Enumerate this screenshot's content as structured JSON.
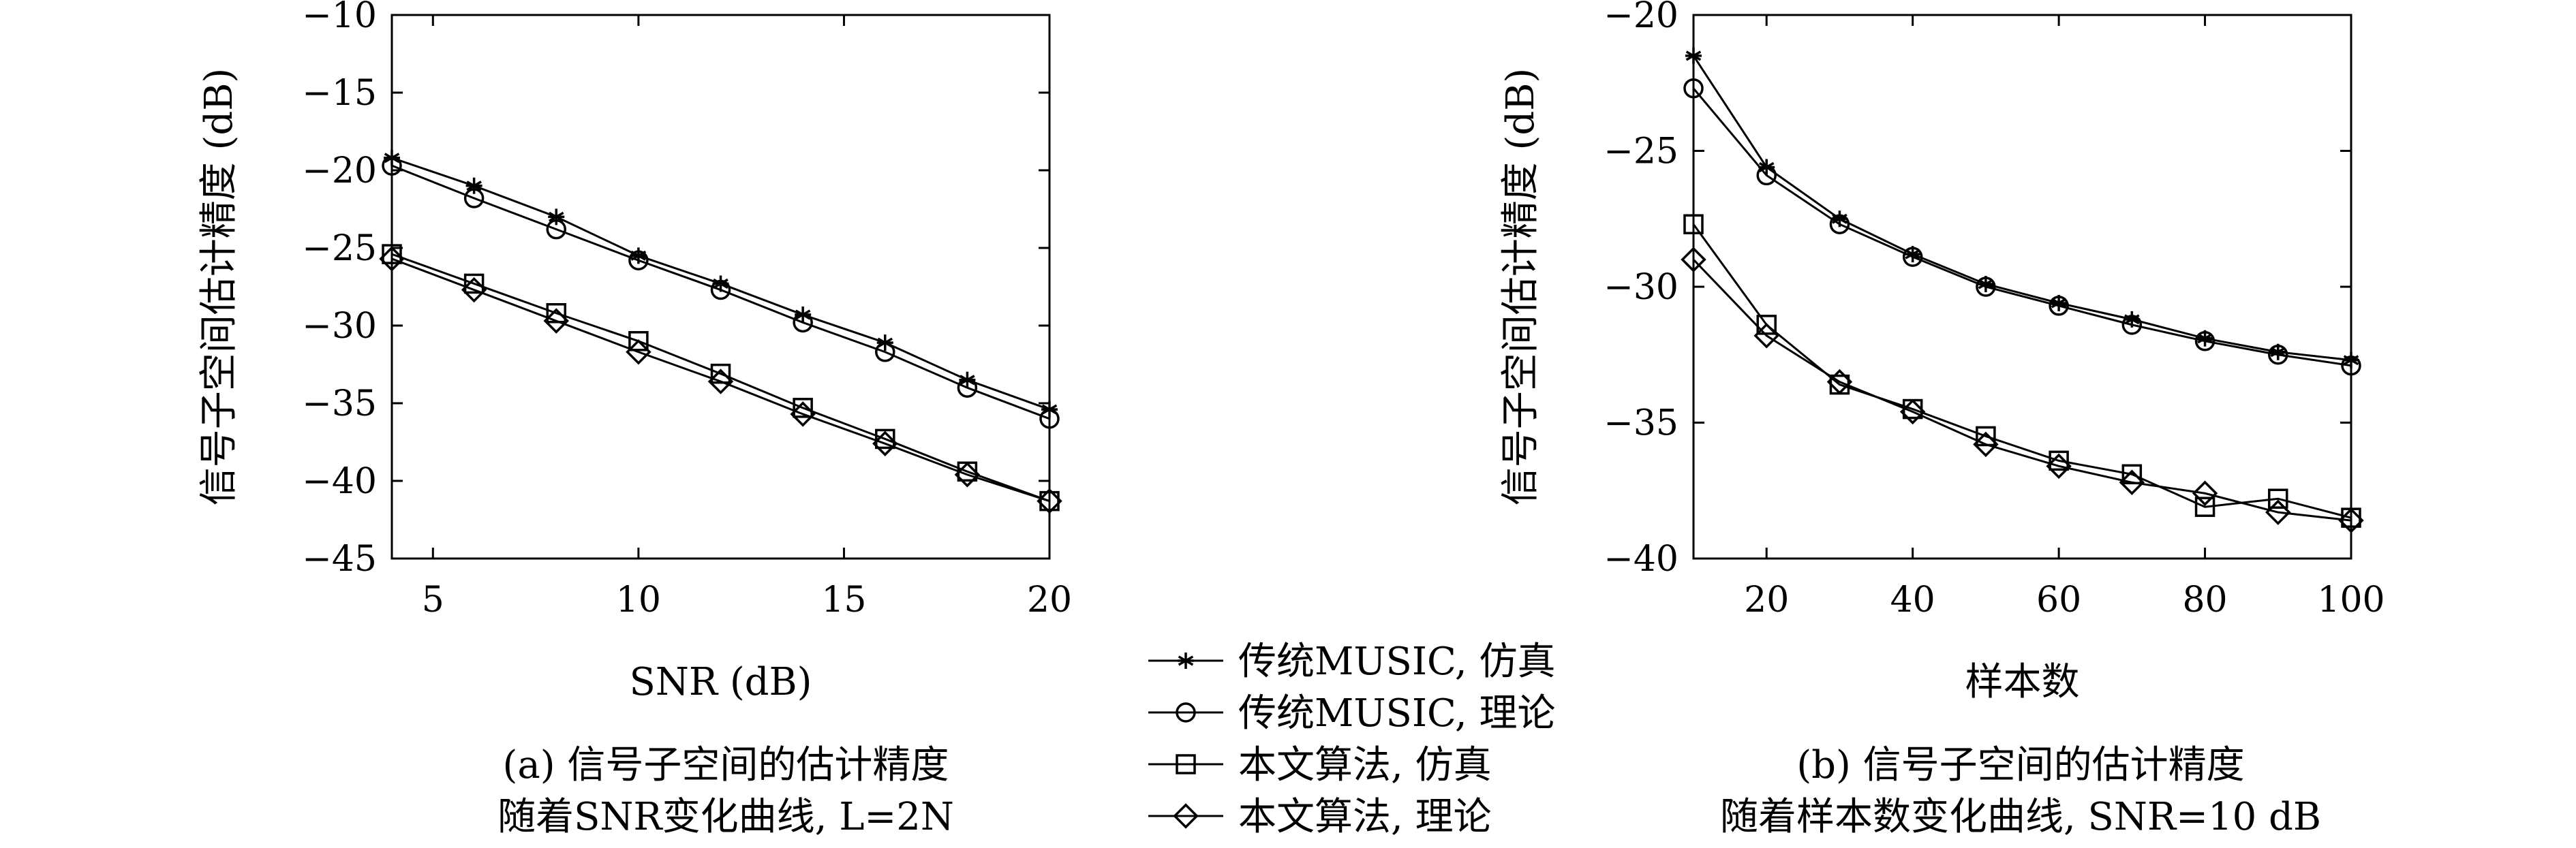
{
  "chart_data": [
    {
      "type": "line",
      "xlabel": "SNR (dB)",
      "ylabel": "信号子空间估计精度 (dB)",
      "xlim": [
        4,
        20
      ],
      "ylim": [
        -45,
        -10
      ],
      "xticks": [
        "5",
        "10",
        "15",
        "20"
      ],
      "yticks": [
        "−10",
        "−15",
        "−20",
        "−25",
        "−30",
        "−35",
        "−40",
        "−45"
      ],
      "caption_line1": "(a) 信号子空间的估计精度",
      "caption_line2": "随着SNR变化曲线, L=2N",
      "grid": false,
      "series": [
        {
          "name": "传统MUSIC, 仿真",
          "marker": "star",
          "x": [
            4,
            6,
            8,
            10,
            12,
            14,
            16,
            18,
            20
          ],
          "y": [
            -19.2,
            -21.0,
            -23.0,
            -25.5,
            -27.3,
            -29.3,
            -31.1,
            -33.5,
            -35.4
          ]
        },
        {
          "name": "传统MUSIC, 理论",
          "marker": "circle",
          "x": [
            4,
            6,
            8,
            10,
            12,
            14,
            16,
            18,
            20
          ],
          "y": [
            -19.7,
            -21.8,
            -23.8,
            -25.8,
            -27.7,
            -29.8,
            -31.7,
            -34.0,
            -36.0
          ]
        },
        {
          "name": "本文算法, 仿真",
          "marker": "square",
          "x": [
            4,
            6,
            8,
            10,
            12,
            14,
            16,
            18,
            20
          ],
          "y": [
            -25.4,
            -27.3,
            -29.2,
            -31.0,
            -33.1,
            -35.3,
            -37.3,
            -39.4,
            -41.3
          ]
        },
        {
          "name": "本文算法, 理论",
          "marker": "diamond",
          "x": [
            4,
            6,
            8,
            10,
            12,
            14,
            16,
            18,
            20
          ],
          "y": [
            -25.7,
            -27.7,
            -29.7,
            -31.7,
            -33.6,
            -35.7,
            -37.6,
            -39.6,
            -41.3
          ]
        }
      ]
    },
    {
      "type": "line",
      "xlabel": "样本数",
      "ylabel": "信号子空间估计精度 (dB)",
      "xlim": [
        10,
        100
      ],
      "ylim": [
        -40,
        -20
      ],
      "xticks": [
        "20",
        "40",
        "60",
        "80",
        "100"
      ],
      "yticks": [
        "−20",
        "−25",
        "−30",
        "−35",
        "−40"
      ],
      "caption_line1": "(b) 信号子空间的估计精度",
      "caption_line2": "随着样本数变化曲线, SNR=10 dB",
      "grid": false,
      "series": [
        {
          "name": "传统MUSIC, 仿真",
          "marker": "star",
          "x": [
            10,
            20,
            30,
            40,
            50,
            60,
            70,
            80,
            90,
            100
          ],
          "y": [
            -21.5,
            -25.6,
            -27.5,
            -28.8,
            -29.9,
            -30.6,
            -31.2,
            -31.9,
            -32.4,
            -32.7
          ]
        },
        {
          "name": "传统MUSIC, 理论",
          "marker": "circle",
          "x": [
            10,
            20,
            30,
            40,
            50,
            60,
            70,
            80,
            90,
            100
          ],
          "y": [
            -22.7,
            -25.9,
            -27.7,
            -28.9,
            -30.0,
            -30.7,
            -31.4,
            -32.0,
            -32.5,
            -32.9
          ]
        },
        {
          "name": "本文算法, 仿真",
          "marker": "square",
          "x": [
            10,
            20,
            30,
            40,
            50,
            60,
            70,
            80,
            90,
            100
          ],
          "y": [
            -27.7,
            -31.4,
            -33.6,
            -34.5,
            -35.5,
            -36.4,
            -36.9,
            -38.1,
            -37.8,
            -38.5
          ]
        },
        {
          "name": "本文算法, 理论",
          "marker": "diamond",
          "x": [
            10,
            20,
            30,
            40,
            50,
            60,
            70,
            80,
            90,
            100
          ],
          "y": [
            -29.0,
            -31.8,
            -33.5,
            -34.6,
            -35.8,
            -36.6,
            -37.2,
            -37.6,
            -38.3,
            -38.6
          ]
        }
      ]
    }
  ],
  "legend": {
    "placement": "bottom-center",
    "items": [
      {
        "label": "传统MUSIC, 仿真",
        "marker": "star"
      },
      {
        "label": "传统MUSIC, 理论",
        "marker": "circle"
      },
      {
        "label": "本文算法, 仿真",
        "marker": "square"
      },
      {
        "label": "本文算法, 理论",
        "marker": "diamond"
      }
    ]
  }
}
